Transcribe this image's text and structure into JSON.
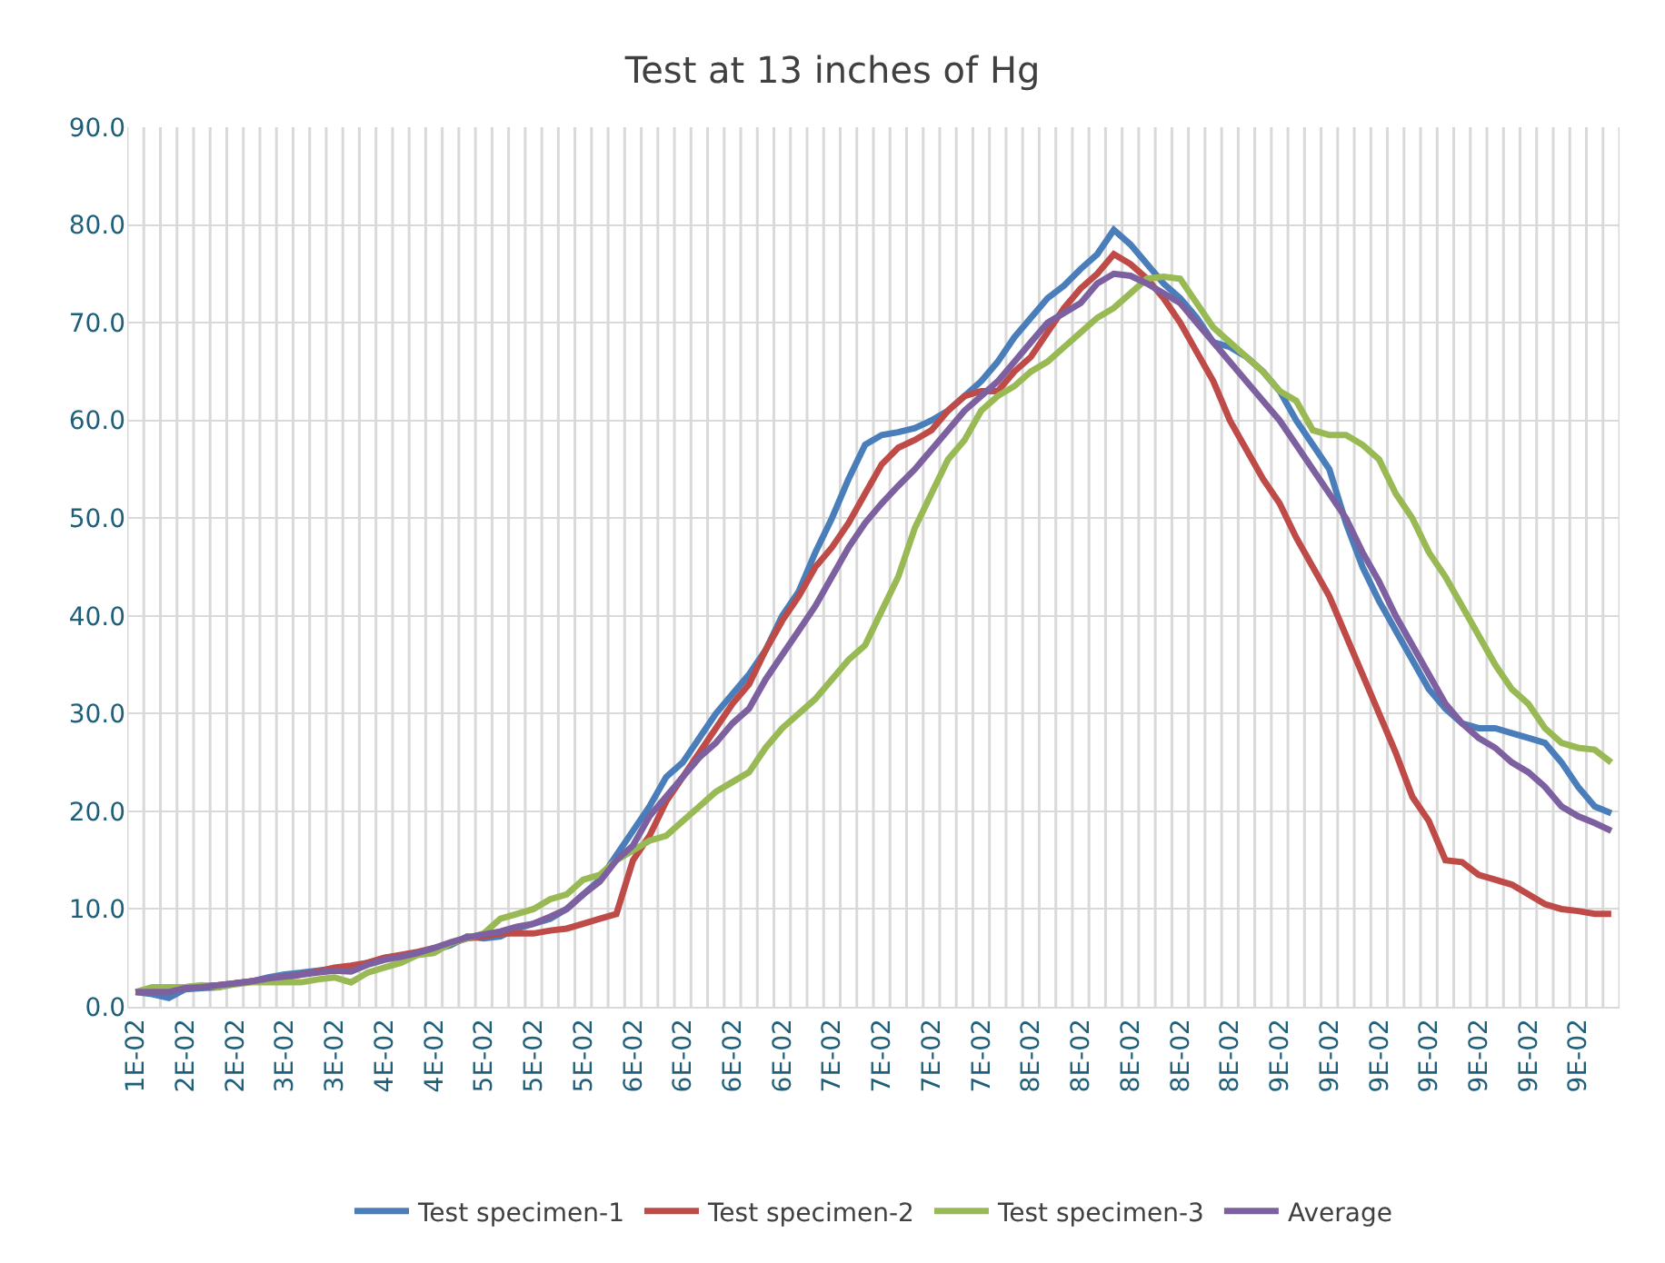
{
  "chart_data": {
    "type": "line",
    "title": "Test at 13 inches of Hg",
    "categories": [
      "1E-02",
      null,
      null,
      "2E-02",
      null,
      null,
      "2E-02",
      null,
      null,
      "3E-02",
      null,
      null,
      "3E-02",
      null,
      null,
      "4E-02",
      null,
      null,
      "4E-02",
      null,
      null,
      "5E-02",
      null,
      null,
      "5E-02",
      null,
      null,
      "5E-02",
      null,
      null,
      "6E-02",
      null,
      null,
      "6E-02",
      null,
      null,
      "6E-02",
      null,
      null,
      "6E-02",
      null,
      null,
      "7E-02",
      null,
      null,
      "7E-02",
      null,
      null,
      "7E-02",
      null,
      null,
      "7E-02",
      null,
      null,
      "8E-02",
      null,
      null,
      "8E-02",
      null,
      null,
      "8E-02",
      null,
      null,
      "8E-02",
      null,
      null,
      "8E-02",
      null,
      null,
      "9E-02",
      null,
      null,
      "9E-02",
      null,
      null,
      "9E-02",
      null,
      null,
      "9E-02",
      null,
      null,
      "9E-02",
      null,
      null,
      "9E-02",
      null,
      null,
      "9E-02",
      null,
      null
    ],
    "series": [
      {
        "name": "Test specimen-1",
        "color": "#4a7ebb",
        "values": [
          1.5,
          1.3,
          0.9,
          1.8,
          1.9,
          2.0,
          2.4,
          2.6,
          3.0,
          3.3,
          3.5,
          3.7,
          3.9,
          4.0,
          4.5,
          5.0,
          5.2,
          5.5,
          5.8,
          6.3,
          7.2,
          7.0,
          7.2,
          8.0,
          8.5,
          9.0,
          10.0,
          11.5,
          13.0,
          15.5,
          18.0,
          20.5,
          23.5,
          25.0,
          27.5,
          30.0,
          32.0,
          34.0,
          36.5,
          40.0,
          42.5,
          46.5,
          50.0,
          54.0,
          57.5,
          58.5,
          58.8,
          59.2,
          60.0,
          61.0,
          62.5,
          64.0,
          66.0,
          68.5,
          70.5,
          72.5,
          73.8,
          75.5,
          77.0,
          79.5,
          78.0,
          76.0,
          74.0,
          72.5,
          70.5,
          68.0,
          67.5,
          66.5,
          65.0,
          63.0,
          60.0,
          57.5,
          55.0,
          49.5,
          45.0,
          41.5,
          38.5,
          35.5,
          32.5,
          30.5,
          29.0,
          28.5,
          28.5,
          28.0,
          27.5,
          27.0,
          25.0,
          22.5,
          20.5,
          19.8
        ]
      },
      {
        "name": "Test specimen-2",
        "color": "#be4b48",
        "values": [
          null,
          null,
          null,
          2.0,
          2.1,
          2.2,
          2.4,
          2.6,
          2.8,
          3.0,
          3.3,
          3.6,
          4.0,
          4.2,
          4.5,
          5.0,
          5.3,
          5.6,
          6.0,
          6.5,
          7.0,
          7.2,
          7.5,
          7.5,
          7.5,
          7.8,
          8.0,
          8.5,
          9.0,
          9.5,
          15.0,
          17.5,
          21.0,
          23.5,
          26.0,
          28.5,
          31.0,
          33.0,
          36.5,
          39.5,
          42.0,
          45.0,
          47.0,
          49.5,
          52.5,
          55.5,
          57.2,
          58.0,
          59.0,
          61.0,
          62.5,
          63.0,
          63.0,
          65.0,
          66.5,
          69.0,
          71.5,
          73.5,
          75.0,
          77.0,
          76.0,
          74.5,
          72.5,
          70.0,
          67.0,
          64.0,
          60.0,
          57.0,
          54.0,
          51.5,
          48.0,
          45.0,
          42.0,
          38.0,
          34.0,
          30.0,
          26.0,
          21.5,
          19.0,
          15.0,
          14.8,
          13.5,
          13.0,
          12.5,
          11.5,
          10.5,
          10.0,
          9.8,
          9.5,
          9.5
        ]
      },
      {
        "name": "Test specimen-3",
        "color": "#98b954",
        "values": [
          1.5,
          2.0,
          2.0,
          2.0,
          2.2,
          2.0,
          2.3,
          2.5,
          2.5,
          2.5,
          2.5,
          2.8,
          3.0,
          2.5,
          3.5,
          4.0,
          4.5,
          5.3,
          5.5,
          6.5,
          7.0,
          7.5,
          9.0,
          9.5,
          10.0,
          11.0,
          11.5,
          13.0,
          13.5,
          15.0,
          16.0,
          17.0,
          17.5,
          19.0,
          20.5,
          22.0,
          23.0,
          24.0,
          26.5,
          28.5,
          30.0,
          31.5,
          33.5,
          35.5,
          37.0,
          40.5,
          44.0,
          49.0,
          52.5,
          56.0,
          58.0,
          61.0,
          62.5,
          63.5,
          65.0,
          66.0,
          67.5,
          69.0,
          70.5,
          71.5,
          73.0,
          74.5,
          74.7,
          74.5,
          72.0,
          69.5,
          68.0,
          66.5,
          65.0,
          63.0,
          62.0,
          59.0,
          58.5,
          58.5,
          57.5,
          56.0,
          52.5,
          50.0,
          46.5,
          44.0,
          41.0,
          38.0,
          35.0,
          32.5,
          31.0,
          28.5,
          27.0,
          26.5,
          26.3,
          25.0
        ]
      },
      {
        "name": "Average",
        "color": "#7d60a0",
        "values": [
          1.5,
          1.5,
          1.5,
          1.9,
          2.0,
          2.2,
          2.4,
          2.6,
          2.9,
          3.1,
          3.3,
          3.5,
          3.7,
          3.6,
          4.3,
          4.8,
          5.1,
          5.5,
          6.0,
          6.6,
          7.1,
          7.4,
          7.7,
          8.2,
          8.5,
          9.2,
          10.0,
          11.5,
          12.8,
          15.0,
          16.5,
          19.5,
          21.5,
          23.5,
          25.5,
          27.0,
          29.0,
          30.5,
          33.5,
          36.0,
          38.5,
          41.0,
          44.0,
          47.0,
          49.5,
          51.5,
          53.3,
          55.0,
          57.0,
          59.0,
          61.0,
          62.5,
          64.0,
          66.0,
          68.0,
          70.0,
          71.0,
          72.0,
          74.0,
          75.0,
          74.8,
          74.0,
          73.0,
          72.0,
          70.0,
          68.0,
          66.0,
          64.0,
          62.0,
          60.0,
          57.5,
          55.0,
          52.5,
          50.0,
          46.5,
          43.5,
          40.0,
          37.0,
          34.0,
          31.0,
          29.0,
          27.5,
          26.5,
          25.0,
          24.0,
          22.5,
          20.5,
          19.5,
          18.8,
          18.0
        ]
      }
    ],
    "ylim": [
      0,
      90
    ],
    "yticks": [
      {
        "value": 0,
        "label": "0.0"
      },
      {
        "value": 10,
        "label": "10.0"
      },
      {
        "value": 20,
        "label": "20.0"
      },
      {
        "value": 30,
        "label": "30.0"
      },
      {
        "value": 40,
        "label": "40.0"
      },
      {
        "value": 50,
        "label": "50.0"
      },
      {
        "value": 60,
        "label": "60.0"
      },
      {
        "value": 70,
        "label": "70.0"
      },
      {
        "value": 80,
        "label": "80.0"
      },
      {
        "value": 90,
        "label": "90.0"
      }
    ],
    "grid": true,
    "legend": "bottom",
    "marker": "none",
    "line_style": "solid"
  }
}
